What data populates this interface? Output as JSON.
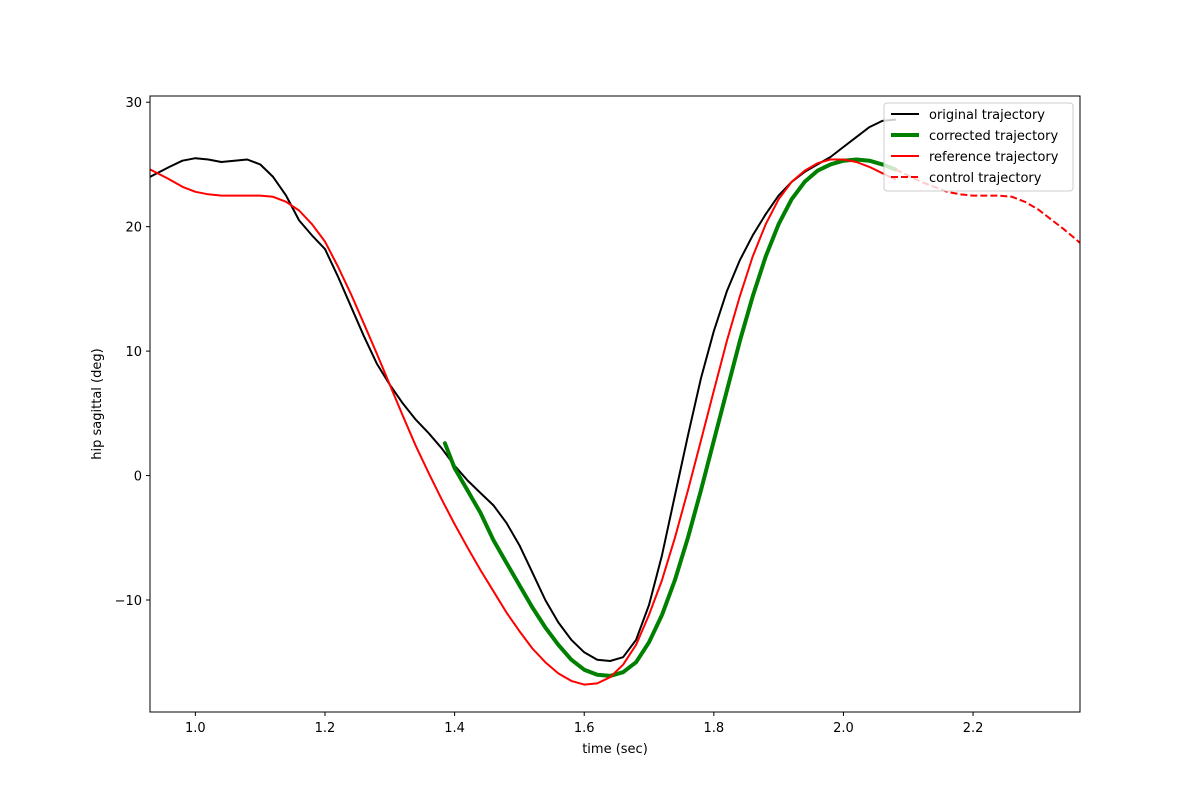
{
  "chart_data": {
    "type": "line",
    "title": "",
    "xlabel": "time (sec)",
    "ylabel": "hip sagittal (deg)",
    "xlim": [
      0.93,
      2.365
    ],
    "ylim": [
      -19.0,
      30.5
    ],
    "xticks": [
      1.0,
      1.2,
      1.4,
      1.6,
      1.8,
      2.0,
      2.2
    ],
    "xtick_labels": [
      "1.0",
      "1.2",
      "1.4",
      "1.6",
      "1.8",
      "2.0",
      "2.2"
    ],
    "yticks": [
      -10,
      0,
      10,
      20,
      30
    ],
    "ytick_labels": [
      "−10",
      "0",
      "10",
      "20",
      "30"
    ],
    "grid": false,
    "legend_position": "top-right",
    "series": [
      {
        "name": "original trajectory",
        "color": "#000000",
        "style": "solid",
        "width": 2,
        "x": [
          0.93,
          0.96,
          0.98,
          1.0,
          1.02,
          1.04,
          1.06,
          1.08,
          1.1,
          1.12,
          1.14,
          1.16,
          1.18,
          1.2,
          1.22,
          1.24,
          1.26,
          1.28,
          1.3,
          1.32,
          1.34,
          1.36,
          1.38,
          1.4,
          1.42,
          1.44,
          1.46,
          1.48,
          1.5,
          1.52,
          1.54,
          1.56,
          1.58,
          1.6,
          1.62,
          1.64,
          1.66,
          1.68,
          1.7,
          1.72,
          1.74,
          1.76,
          1.78,
          1.8,
          1.82,
          1.84,
          1.86,
          1.88,
          1.9,
          1.92,
          1.94,
          1.96,
          1.98,
          2.0,
          2.02,
          2.04,
          2.06,
          2.08
        ],
        "y": [
          24.0,
          24.8,
          25.3,
          25.5,
          25.4,
          25.2,
          25.3,
          25.4,
          25.0,
          24.0,
          22.5,
          20.5,
          19.3,
          18.2,
          16.0,
          13.6,
          11.2,
          9.0,
          7.3,
          5.8,
          4.5,
          3.4,
          2.2,
          0.8,
          -0.4,
          -1.4,
          -2.4,
          -3.8,
          -5.6,
          -7.8,
          -10.0,
          -11.8,
          -13.2,
          -14.2,
          -14.8,
          -14.9,
          -14.6,
          -13.2,
          -10.4,
          -6.4,
          -1.6,
          3.2,
          7.8,
          11.6,
          14.8,
          17.3,
          19.3,
          21.0,
          22.5,
          23.6,
          24.4,
          25.0,
          25.6,
          26.4,
          27.2,
          28.0,
          28.5,
          28.6
        ]
      },
      {
        "name": "corrected trajectory",
        "color": "#008000",
        "style": "solid",
        "width": 4,
        "x": [
          1.385,
          1.4,
          1.42,
          1.44,
          1.46,
          1.48,
          1.5,
          1.52,
          1.54,
          1.56,
          1.58,
          1.6,
          1.62,
          1.64,
          1.66,
          1.68,
          1.7,
          1.72,
          1.74,
          1.76,
          1.78,
          1.8,
          1.82,
          1.84,
          1.86,
          1.88,
          1.9,
          1.92,
          1.94,
          1.96,
          1.98,
          2.0,
          2.02,
          2.04,
          2.06,
          2.08
        ],
        "y": [
          2.6,
          0.6,
          -1.2,
          -3.0,
          -5.2,
          -7.0,
          -8.8,
          -10.6,
          -12.2,
          -13.6,
          -14.8,
          -15.6,
          -16.0,
          -16.1,
          -15.8,
          -15.0,
          -13.4,
          -11.2,
          -8.4,
          -5.0,
          -1.2,
          2.8,
          6.8,
          10.8,
          14.4,
          17.6,
          20.2,
          22.2,
          23.6,
          24.5,
          25.0,
          25.3,
          25.4,
          25.3,
          25.0,
          24.6
        ]
      },
      {
        "name": "reference trajectory",
        "color": "#ff0000",
        "style": "solid",
        "width": 2,
        "x": [
          0.93,
          0.96,
          0.98,
          1.0,
          1.02,
          1.04,
          1.06,
          1.08,
          1.1,
          1.12,
          1.14,
          1.16,
          1.18,
          1.2,
          1.22,
          1.24,
          1.26,
          1.28,
          1.3,
          1.32,
          1.34,
          1.36,
          1.38,
          1.4,
          1.42,
          1.44,
          1.46,
          1.48,
          1.5,
          1.52,
          1.54,
          1.56,
          1.58,
          1.6,
          1.62,
          1.64,
          1.66,
          1.68,
          1.7,
          1.72,
          1.74,
          1.76,
          1.78,
          1.8,
          1.82,
          1.84,
          1.86,
          1.88,
          1.9,
          1.92,
          1.94,
          1.96,
          1.98,
          2.0,
          2.02,
          2.04,
          2.06,
          2.08
        ],
        "y": [
          24.6,
          23.8,
          23.2,
          22.8,
          22.6,
          22.5,
          22.5,
          22.5,
          22.5,
          22.4,
          22.0,
          21.3,
          20.2,
          18.8,
          16.8,
          14.6,
          12.2,
          9.8,
          7.3,
          4.8,
          2.4,
          0.2,
          -1.9,
          -3.9,
          -5.8,
          -7.6,
          -9.3,
          -11.0,
          -12.5,
          -13.9,
          -15.0,
          -15.9,
          -16.5,
          -16.8,
          -16.7,
          -16.2,
          -15.2,
          -13.6,
          -11.2,
          -8.4,
          -5.0,
          -1.2,
          2.8,
          6.8,
          10.8,
          14.4,
          17.6,
          20.2,
          22.2,
          23.6,
          24.5,
          25.1,
          25.4,
          25.4,
          25.2,
          24.8,
          24.3,
          23.8
        ]
      },
      {
        "name": "control trajectory",
        "color": "#ff0000",
        "style": "dashed",
        "width": 2,
        "x": [
          2.08,
          2.1,
          2.12,
          2.14,
          2.16,
          2.18,
          2.2,
          2.22,
          2.24,
          2.26,
          2.28,
          2.3,
          2.32,
          2.34,
          2.365
        ],
        "y": [
          24.6,
          24.1,
          23.6,
          23.2,
          22.8,
          22.6,
          22.5,
          22.5,
          22.5,
          22.4,
          22.0,
          21.4,
          20.6,
          19.8,
          18.7
        ]
      }
    ]
  }
}
